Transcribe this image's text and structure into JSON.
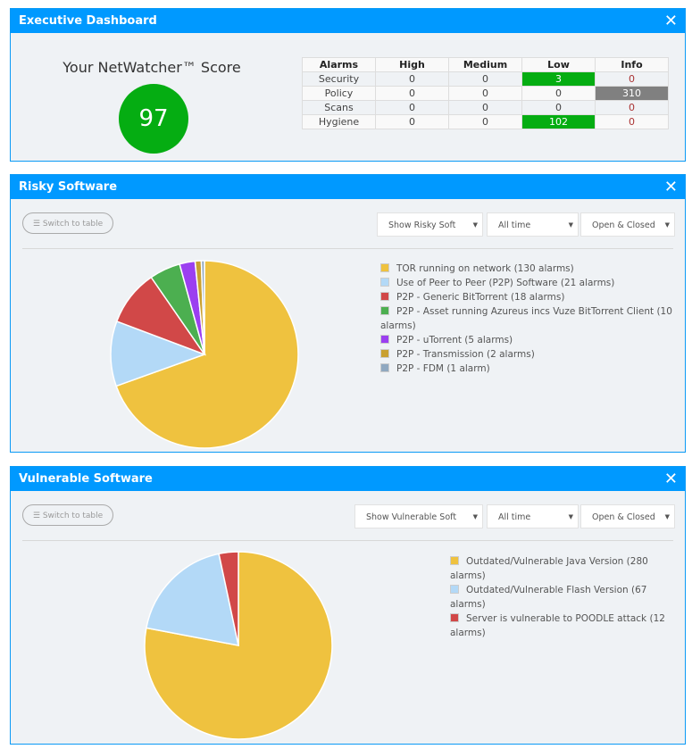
{
  "executive": {
    "title": "Executive Dashboard",
    "score_label": "Your NetWatcher™ Score",
    "score": "97",
    "table": {
      "headers": [
        "Alarms",
        "High",
        "Medium",
        "Low",
        "Info"
      ],
      "rows": [
        [
          "Security",
          "0",
          "0",
          "3",
          "0"
        ],
        [
          "Policy",
          "0",
          "0",
          "0",
          "310"
        ],
        [
          "Scans",
          "0",
          "0",
          "0",
          "0"
        ],
        [
          "Hygiene",
          "0",
          "0",
          "102",
          "0"
        ]
      ]
    }
  },
  "risky": {
    "title": "Risky Software",
    "switch_label": "Switch to table",
    "filters": [
      "Show Risky Soft",
      "All time",
      "Open & Closed"
    ],
    "chart_data": {
      "type": "pie",
      "start": "top",
      "direction": "clockwise",
      "slices": [
        {
          "label": "TOR running on network (130 alarms)",
          "value": 130,
          "color": "#efc23f"
        },
        {
          "label": "Use of Peer to Peer (P2P) Software (21 alarms)",
          "value": 21,
          "color": "#b3d9f7"
        },
        {
          "label": "P2P - Generic BitTorrent (18 alarms)",
          "value": 18,
          "color": "#d14848"
        },
        {
          "label": "P2P - Asset running Azureus incs Vuze BitTorrent Client (10 alarms)",
          "value": 10,
          "color": "#4caf50"
        },
        {
          "label": "P2P - uTorrent (5 alarms)",
          "value": 5,
          "color": "#9b3ff0"
        },
        {
          "label": "P2P - Transmission (2 alarms)",
          "value": 2,
          "color": "#c9a030"
        },
        {
          "label": "P2P - FDM (1 alarm)",
          "value": 1,
          "color": "#90a8c0"
        }
      ]
    }
  },
  "vulnerable": {
    "title": "Vulnerable Software",
    "switch_label": "Switch to table",
    "filters": [
      "Show Vulnerable Soft",
      "All time",
      "Open & Closed"
    ],
    "chart_data": {
      "type": "pie",
      "start": "top",
      "direction": "clockwise",
      "slices": [
        {
          "label": "Outdated/Vulnerable Java Version (280 alarms)",
          "value": 280,
          "color": "#efc23f"
        },
        {
          "label": "Outdated/Vulnerable Flash Version (67 alarms)",
          "value": 67,
          "color": "#b3d9f7"
        },
        {
          "label": "Server is vulnerable to POODLE attack (12 alarms)",
          "value": 12,
          "color": "#d14848"
        }
      ]
    }
  }
}
